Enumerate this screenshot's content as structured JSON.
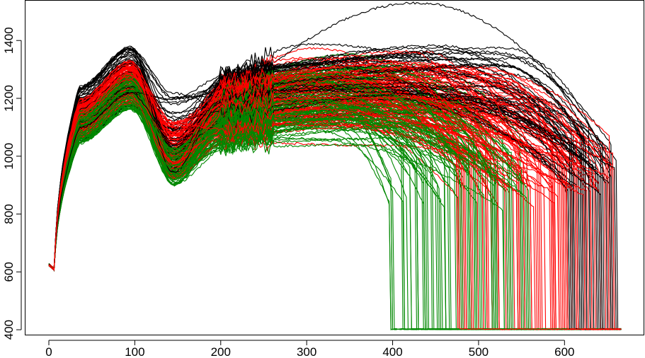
{
  "chart_data": {
    "type": "line",
    "title": "",
    "xlabel": "",
    "ylabel": "",
    "xlim": [
      -28,
      692
    ],
    "ylim": [
      383,
      1540
    ],
    "x_ticks": [
      0,
      100,
      200,
      300,
      400,
      500,
      600
    ],
    "y_ticks": [
      400,
      600,
      800,
      1000,
      1200,
      1400
    ],
    "x_tick_labels": [
      "0",
      "100",
      "200",
      "300",
      "400",
      "500",
      "600"
    ],
    "y_tick_labels": [
      "400",
      "600",
      "800",
      "1000",
      "1200",
      "1400"
    ],
    "grid": false,
    "legend": "none",
    "series_groups": [
      {
        "color": "#008800",
        "count": 90,
        "x_range": [
          0,
          666
        ],
        "start_value": 625,
        "dip_x": 7,
        "dip_value": 607,
        "first_peak_x": 95,
        "first_peak_value": [
          1160,
          1290
        ],
        "valley_x": 145,
        "valley_value": [
          900,
          1030
        ],
        "second_peak_x": 210,
        "second_peak_value": [
          1030,
          1230
        ],
        "drop_x_range": [
          395,
          560
        ],
        "floor_value": 400,
        "noisy_region_x": [
          200,
          260
        ]
      },
      {
        "color": "#ff0000",
        "count": 110,
        "x_range": [
          0,
          666
        ],
        "start_value": 625,
        "dip_x": 7,
        "dip_value": 607,
        "first_peak_x": 95,
        "first_peak_value": [
          1180,
          1330
        ],
        "valley_x": 145,
        "valley_value": [
          920,
          1120
        ],
        "second_peak_x": 210,
        "second_peak_value": [
          1050,
          1270
        ],
        "drop_x_range": [
          470,
          660
        ],
        "floor_value": 400,
        "noisy_region_x": [
          200,
          260
        ]
      },
      {
        "color": "#000000",
        "count": 45,
        "x_range": [
          0,
          666
        ],
        "start_value": 625,
        "dip_x": 7,
        "dip_value": 607,
        "first_peak_x": 95,
        "first_peak_value": [
          1170,
          1380
        ],
        "valley_x": 145,
        "valley_value": [
          930,
          1230
        ],
        "second_peak_x": 210,
        "second_peak_value": [
          1120,
          1310
        ],
        "drop_x_range": [
          600,
          666
        ],
        "floor_value": 400,
        "noisy_region_x": [
          200,
          260
        ],
        "notable_max": {
          "x": 390,
          "y": 1530
        }
      }
    ]
  }
}
